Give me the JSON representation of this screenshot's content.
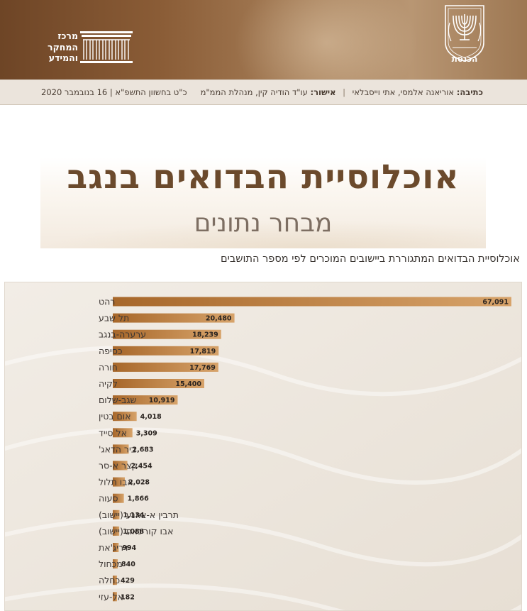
{
  "header": {
    "knesset_name": "הכנסת",
    "research_center": [
      "מרכז",
      "המחקר",
      "והמידע"
    ],
    "knesset_logo_icon": "menorah-emblem-icon",
    "research_logo_icon": "pillared-building-icon"
  },
  "infobar": {
    "author_label": "כתיבה:",
    "authors": "אוריאנה אלמסי, אתי וייסבלאי",
    "approval_label": "אישור:",
    "approver": "עו\"ד הודיה קין, מנהלת הממ\"מ",
    "date": "כ\"ט בחשוון התשפ\"א | 16 בנובמבר 2020"
  },
  "title": {
    "main": "אוכלוסיית הבדואים בנגב",
    "sub": "מבחר נתונים"
  },
  "caption": "אוכלוסיית הבדואים המתגוררת ביישובים המוכרים לפי מספר התושבים",
  "colors": {
    "header_dark": "#6e4526",
    "bar_main": "#a86a2b",
    "bar_light": "#d9a569",
    "title_brown": "#6b4a2c"
  },
  "chart_data": {
    "type": "bar",
    "orientation": "horizontal",
    "categories": [
      "רהט",
      "תל שבע",
      "ערערה-בנגב",
      "כסיפה",
      "חורה",
      "לקיה",
      "שגב-שלום",
      "אום בטין",
      "אל סייד",
      "ביר הדאג'",
      "קצר א-סר",
      "אבו תלול",
      "סעוה",
      "תרבין א-צאנע (יישוב)",
      "אבו קורינאת (יישוב)",
      "דריג'את",
      "מכחול",
      "כחלה",
      "אל-עזי"
    ],
    "values": [
      67091,
      20480,
      18239,
      17819,
      17769,
      15400,
      10919,
      4018,
      3309,
      2683,
      2454,
      2028,
      1866,
      1134,
      1088,
      994,
      840,
      429,
      182
    ],
    "value_labels": [
      "67,091",
      "20,480",
      "18,239",
      "17,819",
      "17,769",
      "15,400",
      "10,919",
      "4,018",
      "3,309",
      "2,683",
      "2,454",
      "2,028",
      "1,866",
      "1,134",
      "1,088",
      "994",
      "840",
      "429",
      "182"
    ],
    "xlim": [
      0,
      67091
    ],
    "grid": false,
    "legend": "none"
  }
}
